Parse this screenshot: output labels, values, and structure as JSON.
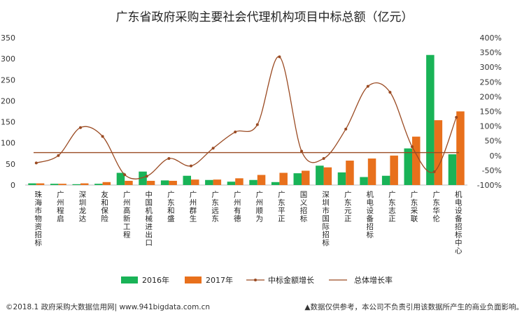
{
  "colors": {
    "s2016": "#19b357",
    "s2017": "#e8701c",
    "line": "#9a4a22",
    "axis_text": "#333333"
  },
  "chart_data": {
    "type": "bar",
    "title": "广东省政府采购主要社会代理机构项目中标总额（亿元）",
    "categories": [
      "珠海市物资招标",
      "广州程启",
      "深圳龙达",
      "友和保险",
      "广州高新工程",
      "中国机械进出口",
      "广东和盛",
      "广州群生",
      "广东远东",
      "广州有德",
      "广州顺为",
      "广东平正",
      "国义招标",
      "深圳市国际招标",
      "广东元正",
      "机电设备招标",
      "广东志正",
      "广东采联",
      "广东华伦",
      "机电设备招标中心"
    ],
    "series": [
      {
        "name": "2016年",
        "axis": "left",
        "kind": "bar",
        "values": [
          4,
          3,
          2,
          3,
          29,
          32,
          11,
          22,
          12,
          8,
          12,
          7,
          28,
          46,
          30,
          19,
          22,
          87,
          309,
          73
        ]
      },
      {
        "name": "2017年",
        "axis": "left",
        "kind": "bar",
        "values": [
          4,
          3,
          4,
          7,
          10,
          10,
          10,
          13,
          13,
          16,
          24,
          29,
          34,
          42,
          58,
          63,
          70,
          115,
          154,
          175
        ]
      },
      {
        "name": "中标金额增长",
        "axis": "right",
        "kind": "line",
        "values": [
          -25,
          0,
          95,
          65,
          -65,
          -70,
          -10,
          -35,
          25,
          80,
          105,
          335,
          15,
          -10,
          90,
          235,
          215,
          30,
          -55,
          130
        ]
      },
      {
        "name": "总体增长率",
        "axis": "right",
        "kind": "hline",
        "value": 10
      }
    ],
    "y_left": {
      "min": 0,
      "max": 350,
      "ticks": [
        0,
        50,
        100,
        150,
        200,
        250,
        300,
        350
      ]
    },
    "y_right": {
      "min": -100,
      "max": 400,
      "ticks": [
        -100,
        -50,
        0,
        50,
        100,
        150,
        200,
        250,
        300,
        350,
        400
      ],
      "suffix": "%"
    },
    "legend_position": "bottom",
    "grid": false
  },
  "footer": {
    "left": "©2018.1 政府采购大数据信用网| www.941bigdata.com.cn",
    "right": "▲数据仅供参考，本公司不负责引用该数据所产生的商业负面影响。"
  }
}
